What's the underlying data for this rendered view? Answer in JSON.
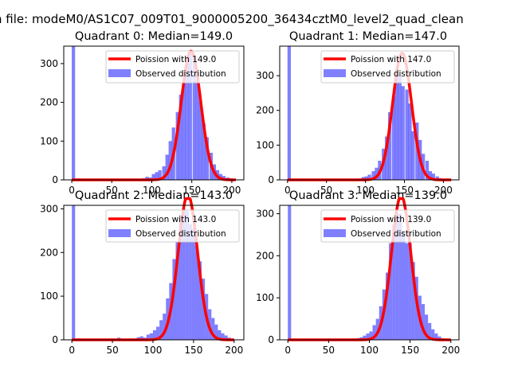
{
  "suptitle": "n file: modeM0/AS1C07_009T01_9000005200_36434cztM0_level2_quad_clean",
  "colors": {
    "hist": "#0000ff",
    "fit": "#ff0000",
    "axis": "#000000"
  },
  "chart_data": [
    {
      "type": "bar",
      "title": "Quadrant 0: Median=149.0",
      "legend": [
        "Poission with 149.0",
        "Observed distribution"
      ],
      "legend_position": "top-right",
      "xlim": [
        -10,
        215
      ],
      "ylim": [
        0,
        345
      ],
      "xticks": [
        0,
        50,
        100,
        150,
        200
      ],
      "xtick_labels": [
        "0",
        "50",
        "100",
        "150",
        "200"
      ],
      "yticks": [
        0,
        100,
        200,
        300
      ],
      "ytick_labels": [
        "0",
        "100",
        "200",
        "300"
      ],
      "bin_width": 4.2,
      "bins": [
        0,
        84,
        88,
        92,
        96,
        100,
        104,
        108,
        113,
        117,
        121,
        125,
        130,
        134,
        138,
        142,
        146,
        151,
        155,
        159,
        163,
        167,
        172,
        176,
        180,
        184,
        188,
        193,
        197,
        201
      ],
      "values": [
        345,
        2,
        4,
        8,
        6,
        15,
        20,
        25,
        35,
        65,
        100,
        135,
        175,
        220,
        250,
        300,
        325,
        320,
        255,
        200,
        145,
        110,
        70,
        40,
        25,
        15,
        10,
        6,
        4,
        2
      ],
      "fit": {
        "label": "Poission with 149.0",
        "mean": 149,
        "amplitude": 332,
        "x_start": 0,
        "x_end": 205
      }
    },
    {
      "type": "bar",
      "title": "Quadrant 1: Median=147.0",
      "legend": [
        "Poission with 147.0",
        "Observed distribution"
      ],
      "legend_position": "top-right",
      "xlim": [
        -10,
        220
      ],
      "ylim": [
        0,
        385
      ],
      "xticks": [
        0,
        50,
        100,
        150,
        200
      ],
      "xtick_labels": [
        "0",
        "50",
        "100",
        "150",
        "200"
      ],
      "yticks": [
        0,
        100,
        200,
        300
      ],
      "ytick_labels": [
        "0",
        "100",
        "200",
        "300"
      ],
      "bin_width": 4.3,
      "bins": [
        0,
        86,
        90,
        95,
        99,
        103,
        108,
        112,
        116,
        121,
        125,
        129,
        134,
        138,
        142,
        146,
        151,
        155,
        159,
        164,
        168,
        172,
        177,
        181,
        185,
        190,
        194,
        198,
        203,
        207
      ],
      "values": [
        385,
        2,
        4,
        8,
        10,
        15,
        25,
        35,
        55,
        90,
        125,
        195,
        240,
        320,
        300,
        270,
        260,
        220,
        140,
        165,
        115,
        75,
        55,
        25,
        18,
        10,
        5,
        3,
        2,
        1
      ],
      "fit": {
        "label": "Poission with 147.0",
        "mean": 147,
        "amplitude": 365,
        "x_start": 0,
        "x_end": 210
      }
    },
    {
      "type": "bar",
      "title": "Quadrant 2: Median=143.0",
      "legend": [
        "Poission with 143.0",
        "Observed distribution"
      ],
      "legend_position": "top-right",
      "xlim": [
        -10,
        212
      ],
      "ylim": [
        0,
        308
      ],
      "xticks": [
        0,
        50,
        100,
        150,
        200
      ],
      "xtick_labels": [
        "0",
        "50",
        "100",
        "150",
        "200"
      ],
      "yticks": [
        0,
        100,
        200,
        300
      ],
      "ytick_labels": [
        "0",
        "100",
        "200",
        "300"
      ],
      "bin_width": 4.0,
      "bins": [
        0,
        56,
        76,
        80,
        84,
        88,
        92,
        96,
        100,
        104,
        108,
        112,
        116,
        120,
        124,
        128,
        132,
        136,
        140,
        144,
        148,
        152,
        156,
        160,
        164,
        168,
        172,
        176,
        180,
        184,
        188,
        192,
        196
      ],
      "values": [
        308,
        5,
        3,
        6,
        8,
        5,
        12,
        15,
        22,
        30,
        45,
        60,
        95,
        130,
        185,
        225,
        285,
        300,
        295,
        265,
        255,
        215,
        180,
        140,
        105,
        70,
        50,
        35,
        22,
        15,
        10,
        5,
        3
      ],
      "fit": {
        "label": "Poission with 143.0",
        "mean": 143,
        "amplitude": 332,
        "x_start": 0,
        "x_end": 200
      }
    },
    {
      "type": "bar",
      "title": "Quadrant 3: Median=139.0",
      "legend": [
        "Poission with 139.0",
        "Observed distribution"
      ],
      "legend_position": "top-right",
      "xlim": [
        -10,
        210
      ],
      "ylim": [
        0,
        320
      ],
      "xticks": [
        0,
        50,
        100,
        150,
        200
      ],
      "xtick_labels": [
        "0",
        "50",
        "100",
        "150",
        "200"
      ],
      "yticks": [
        0,
        100,
        200,
        300
      ],
      "ytick_labels": [
        "0",
        "100",
        "200",
        "300"
      ],
      "bin_width": 4.0,
      "bins": [
        0,
        80,
        84,
        88,
        92,
        96,
        100,
        104,
        108,
        112,
        116,
        120,
        124,
        128,
        132,
        136,
        140,
        144,
        148,
        152,
        156,
        160,
        164,
        168,
        172,
        176,
        180,
        184,
        188,
        192
      ],
      "values": [
        320,
        2,
        4,
        6,
        10,
        15,
        20,
        35,
        50,
        80,
        120,
        160,
        230,
        275,
        300,
        300,
        260,
        230,
        230,
        185,
        150,
        105,
        85,
        60,
        40,
        25,
        15,
        8,
        4,
        2
      ],
      "fit": {
        "label": "Poission with 139.0",
        "mean": 139,
        "amplitude": 343,
        "x_start": 0,
        "x_end": 200
      }
    }
  ]
}
